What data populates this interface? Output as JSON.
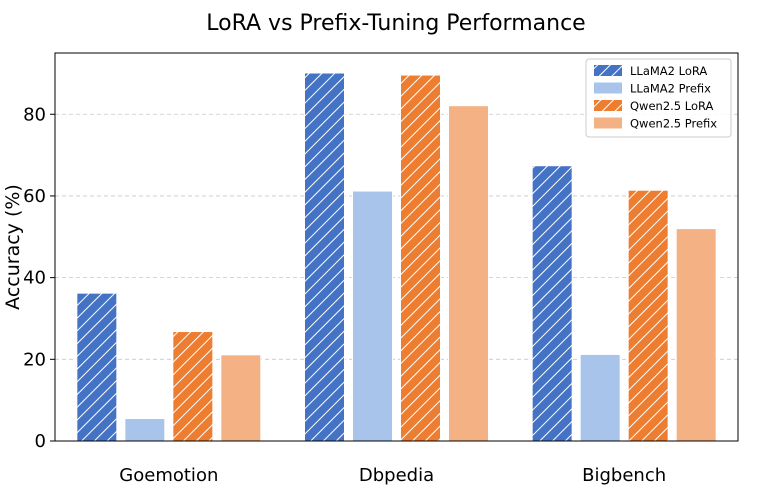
{
  "chart_data": {
    "type": "bar",
    "title": "LoRA vs Prefix-Tuning Performance",
    "xlabel": "",
    "ylabel": "Accuracy (%)",
    "categories": [
      "Goemotion",
      "Dbpedia",
      "Bigbench"
    ],
    "ylim": [
      0,
      95
    ],
    "yticks": [
      0,
      20,
      40,
      60,
      80
    ],
    "grid": "y-dashed",
    "legend_position": "top-right",
    "series": [
      {
        "name": "LLaMA2 LoRA",
        "values": [
          36.2,
          90.1,
          67.4
        ],
        "color": "#4472c4",
        "hatch": true
      },
      {
        "name": "LLaMA2 Prefix",
        "values": [
          5.5,
          61.2,
          21.2
        ],
        "color": "#a9c4eb",
        "hatch": false
      },
      {
        "name": "Qwen2.5 LoRA",
        "values": [
          26.8,
          89.6,
          61.4
        ],
        "color": "#ed7d31",
        "hatch": true
      },
      {
        "name": "Qwen2.5 Prefix",
        "values": [
          21.1,
          82.1,
          52.0
        ],
        "color": "#f4b183",
        "hatch": false
      }
    ]
  }
}
